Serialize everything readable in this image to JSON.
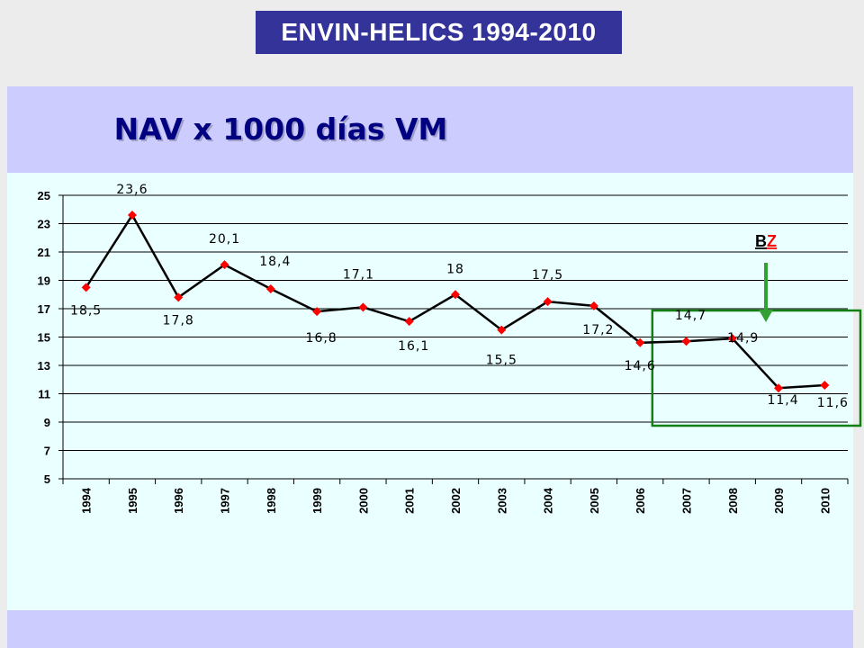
{
  "banner": {
    "title": "ENVIN-HELICS 1994-2010"
  },
  "chart_data": {
    "type": "line",
    "title": "NAV x 1000 días VM",
    "xlabel": "",
    "ylabel": "",
    "ylim": [
      5,
      25
    ],
    "yticks": [
      25,
      23,
      21,
      19,
      17,
      15,
      13,
      11,
      9,
      7,
      5
    ],
    "grid": true,
    "legend": "none",
    "categories": [
      "1994",
      "1995",
      "1996",
      "1997",
      "1998",
      "1999",
      "2000",
      "2001",
      "2002",
      "2003",
      "2004",
      "2005",
      "2006",
      "2007",
      "2008",
      "2009",
      "2010"
    ],
    "values": [
      18.5,
      23.6,
      17.8,
      20.1,
      18.4,
      16.8,
      17.1,
      16.1,
      18,
      15.5,
      17.5,
      17.2,
      14.6,
      14.7,
      14.9,
      11.4,
      11.6
    ],
    "data_labels": [
      "18,5",
      "23,6",
      "17,8",
      "20,1",
      "18,4",
      "16,8",
      "17,1",
      "16,1",
      "18",
      "15,5",
      "17,5",
      "17,2",
      "14,6",
      "14,7",
      "14,9",
      "11,4",
      "11,6"
    ],
    "line_color": "#000000",
    "marker_color": "#ff0000",
    "annotation": {
      "text_b": "B",
      "text_z": "Z",
      "color_b": "#000000",
      "color_z": "#ff0000",
      "arrow_color": "#33a033",
      "box_color": "#108010",
      "highlight_from": "2007",
      "highlight_to": "2010"
    }
  }
}
